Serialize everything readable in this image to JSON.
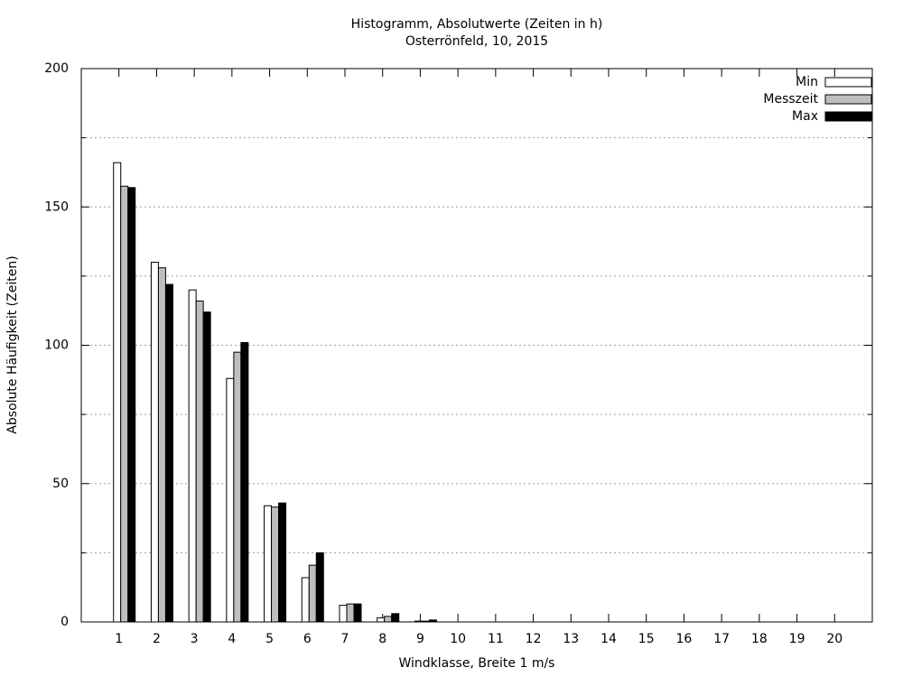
{
  "chart_data": {
    "type": "bar",
    "title": "Histogramm, Absolutwerte (Zeiten in h)",
    "subtitle": "Osterrönfeld, 10, 2015",
    "x_label": "Windklasse, Breite 1 m/s",
    "y_label": "Absolute Häufigkeit (Zeiten)",
    "categories": [
      "1",
      "2",
      "3",
      "4",
      "5",
      "6",
      "7",
      "8",
      "9",
      "10",
      "11",
      "12",
      "13",
      "14",
      "15",
      "16",
      "17",
      "18",
      "19",
      "20"
    ],
    "series": [
      {
        "name": "Min",
        "color": "#ffffff",
        "values": [
          166,
          130,
          120,
          88,
          42,
          16,
          6,
          1.5,
          0.3,
          0,
          0,
          0,
          0,
          0,
          0,
          0,
          0,
          0,
          0,
          0
        ]
      },
      {
        "name": "Messzeit",
        "color": "#bebebe",
        "values": [
          157.5,
          128,
          116,
          97.5,
          41.5,
          20.5,
          6.5,
          2,
          0.3,
          0,
          0,
          0,
          0,
          0,
          0,
          0,
          0,
          0,
          0,
          0
        ]
      },
      {
        "name": "Max",
        "color": "#000000",
        "values": [
          157,
          122,
          112,
          101,
          43,
          25,
          6.5,
          3,
          0.7,
          0,
          0,
          0,
          0,
          0,
          0,
          0,
          0,
          0,
          0,
          0
        ]
      }
    ],
    "ylim": [
      0,
      200
    ],
    "yticks": [
      0,
      50,
      100,
      150,
      200
    ],
    "minor_yticks": [
      25,
      75,
      125,
      175
    ],
    "grid": true,
    "legend": "top-right"
  }
}
